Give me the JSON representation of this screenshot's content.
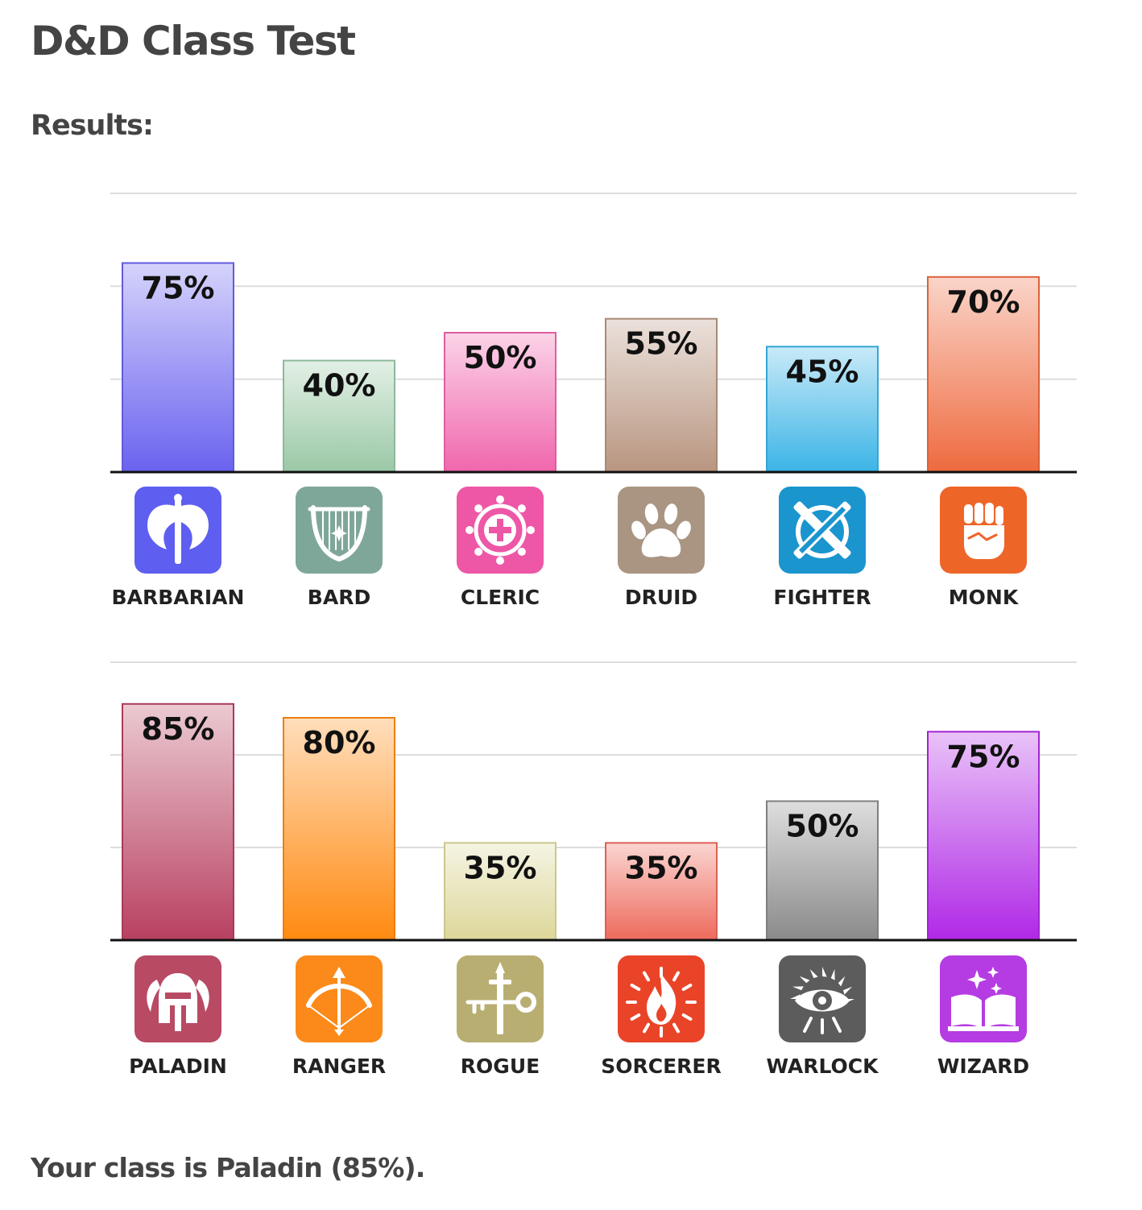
{
  "page": {
    "title": "D&D Class Test",
    "results_heading": "Results:",
    "result_text": "Your class is Paladin (85%)."
  },
  "chart_data": [
    {
      "type": "bar",
      "categories": [
        "BARBARIAN",
        "BARD",
        "CLERIC",
        "DRUID",
        "FIGHTER",
        "MONK"
      ],
      "values": [
        75,
        40,
        50,
        55,
        45,
        70
      ],
      "value_labels": [
        "75%",
        "40%",
        "50%",
        "55%",
        "45%",
        "70%"
      ],
      "ylim": [
        0,
        100
      ],
      "grid": true,
      "colors": [
        "#6a62ef",
        "#9ac8a6",
        "#f066ad",
        "#b89580",
        "#3bb4e6",
        "#ee6a3e"
      ],
      "icons": [
        "axe-icon",
        "lyre-icon",
        "holy-symbol-icon",
        "paw-icon",
        "crossed-swords-icon",
        "fist-icon"
      ],
      "icon_colors": [
        "#5e5ef0",
        "#7fa799",
        "#ee56a6",
        "#a99582",
        "#1b95ce",
        "#ee6528"
      ]
    },
    {
      "type": "bar",
      "categories": [
        "PALADIN",
        "RANGER",
        "ROGUE",
        "SORCERER",
        "WARLOCK",
        "WIZARD"
      ],
      "values": [
        85,
        80,
        35,
        35,
        50,
        75
      ],
      "value_labels": [
        "85%",
        "80%",
        "35%",
        "35%",
        "50%",
        "75%"
      ],
      "ylim": [
        0,
        100
      ],
      "grid": true,
      "colors": [
        "#b84060",
        "#ff8a10",
        "#ddd79a",
        "#ee6a5c",
        "#8a8a8a",
        "#b028e6"
      ],
      "icons": [
        "winged-helmet-icon",
        "bow-icon",
        "dagger-key-icon",
        "flame-icon",
        "eye-icon",
        "spellbook-icon"
      ],
      "icon_colors": [
        "#b84a64",
        "#fb8a1a",
        "#b9ae72",
        "#ea4428",
        "#5c5c5c",
        "#b53ce2"
      ]
    }
  ]
}
